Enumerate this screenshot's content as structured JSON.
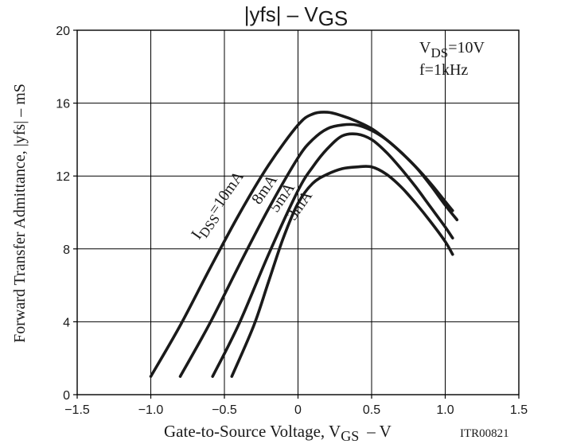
{
  "chart_data": {
    "type": "line",
    "title": "|yfs| – V",
    "title_sub": "GS",
    "xlabel": "Gate-to-Source Voltage, V",
    "xlabel_sub": "GS",
    "xlabel_unit": "–  V",
    "ylabel": "Forward Transfer Admittance, |yfs|  –  mS",
    "xlim": [
      -1.5,
      1.5
    ],
    "ylim": [
      0,
      20
    ],
    "xticks": [
      "-1.5",
      "-1.0",
      "-0.5",
      "0",
      "0.5",
      "1.0",
      "1.5"
    ],
    "yticks": [
      "0",
      "4",
      "8",
      "12",
      "16",
      "20"
    ],
    "grid": true,
    "conditions": {
      "vds_prefix": "V",
      "vds_sub": "DS",
      "vds_value": "=10V",
      "freq": "f=1kHz"
    },
    "figure_code": "ITR00821",
    "series": [
      {
        "name": "10mA",
        "label_prefix": "I",
        "label_sub": "DSS",
        "label_value": "=10mA",
        "x": [
          -1.0,
          -0.8,
          -0.6,
          -0.4,
          -0.2,
          0.0,
          0.1,
          0.2,
          0.3,
          0.4,
          0.5,
          0.6,
          0.7,
          0.8,
          0.9,
          1.0,
          1.08
        ],
        "y": [
          1.0,
          3.8,
          6.9,
          9.9,
          12.6,
          14.8,
          15.4,
          15.5,
          15.3,
          15.0,
          14.6,
          14.0,
          13.3,
          12.5,
          11.5,
          10.4,
          9.6
        ]
      },
      {
        "name": "8mA",
        "label": "8mA",
        "x": [
          -0.8,
          -0.6,
          -0.4,
          -0.2,
          0.0,
          0.1,
          0.2,
          0.3,
          0.4,
          0.5,
          0.6,
          0.7,
          0.8,
          0.9,
          1.0,
          1.05
        ],
        "y": [
          1.0,
          3.9,
          7.1,
          10.2,
          13.0,
          14.0,
          14.6,
          14.8,
          14.8,
          14.5,
          14.0,
          13.3,
          12.5,
          11.6,
          10.6,
          10.1
        ]
      },
      {
        "name": "5mA",
        "label": "5mA",
        "x": [
          -0.58,
          -0.4,
          -0.2,
          0.0,
          0.1,
          0.2,
          0.3,
          0.4,
          0.5,
          0.6,
          0.7,
          0.8,
          0.9,
          1.0,
          1.05
        ],
        "y": [
          1.0,
          3.9,
          7.7,
          11.2,
          12.5,
          13.5,
          14.2,
          14.3,
          14.0,
          13.3,
          12.4,
          11.4,
          10.3,
          9.2,
          8.6
        ]
      },
      {
        "name": "3mA",
        "label": "3mA",
        "x": [
          -0.45,
          -0.3,
          -0.2,
          -0.1,
          0.0,
          0.1,
          0.2,
          0.3,
          0.4,
          0.5,
          0.6,
          0.7,
          0.8,
          0.9,
          1.0,
          1.05
        ],
        "y": [
          1.0,
          3.8,
          6.2,
          8.6,
          10.5,
          11.6,
          12.1,
          12.4,
          12.5,
          12.5,
          12.1,
          11.4,
          10.5,
          9.5,
          8.4,
          7.7
        ]
      }
    ]
  }
}
